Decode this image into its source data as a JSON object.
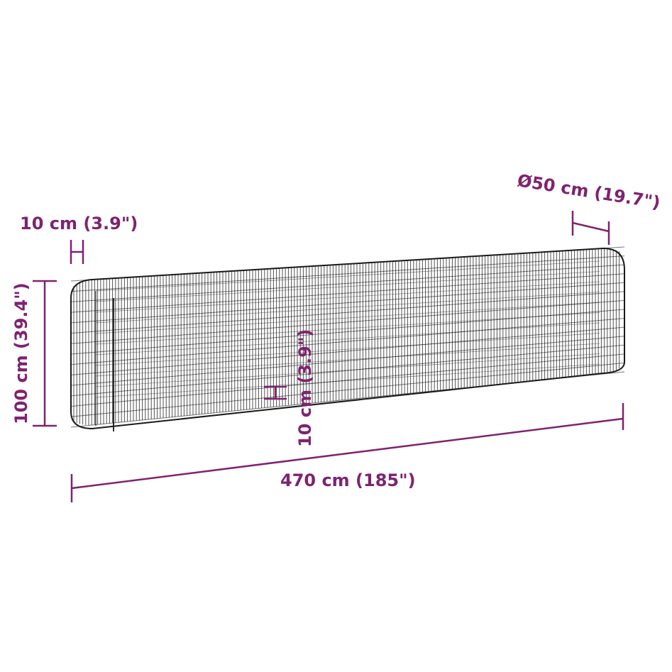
{
  "colors": {
    "dimension": "#7e2370",
    "wire": "#1a1a1a"
  },
  "labels": {
    "thickness_top": "10 cm (3.9\")",
    "diameter": "Ø50 cm (19.7\")",
    "height": "100 cm (39.4\")",
    "thickness_mid": "10 cm (3.9\")",
    "length": "470 cm (185\")"
  }
}
